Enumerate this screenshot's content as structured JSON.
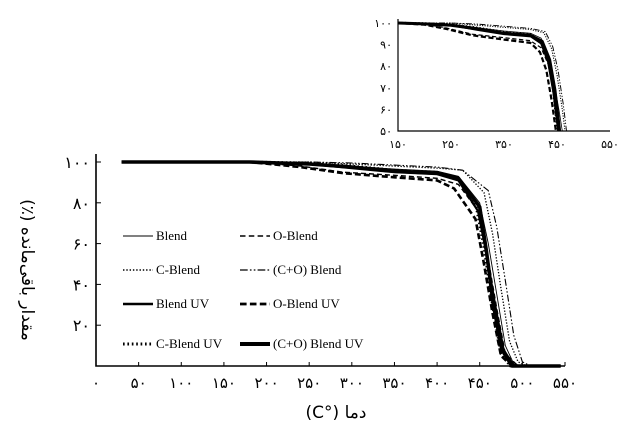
{
  "chart_data": [
    {
      "type": "line",
      "title": "",
      "xlabel": "دما (°C)",
      "ylabel": "مقدار باقی‌مانده (٪)",
      "xlim": [
        0,
        550
      ],
      "ylim": [
        0,
        100
      ],
      "x_ticks": [
        0,
        50,
        100,
        150,
        200,
        250,
        300,
        350,
        400,
        450,
        500,
        550
      ],
      "x_tick_labels": [
        "۰",
        "۵۰",
        "۱۰۰",
        "۱۵۰",
        "۲۰۰",
        "۲۵۰",
        "۳۰۰",
        "۳۵۰",
        "۴۰۰",
        "۴۵۰",
        "۵۰۰",
        "۵۵۰"
      ],
      "y_ticks": [
        20,
        40,
        60,
        80,
        100
      ],
      "y_tick_labels": [
        "۲۰",
        "۴۰",
        "۶۰",
        "۸۰",
        "۱۰۰"
      ],
      "grid": false,
      "legend_position": "bottom-left",
      "series": [
        {
          "name": "Blend",
          "style": "thin-solid",
          "x": [
            30,
            180,
            250,
            300,
            350,
            400,
            425,
            450,
            460,
            470,
            480,
            490,
            500
          ],
          "y": [
            100,
            100,
            99.5,
            98,
            96.5,
            95.5,
            93,
            80,
            60,
            35,
            10,
            1,
            0
          ]
        },
        {
          "name": "O-Blend",
          "style": "dashed",
          "x": [
            30,
            180,
            240,
            290,
            350,
            400,
            425,
            450,
            460,
            470,
            480,
            495
          ],
          "y": [
            100,
            100,
            98,
            95,
            93.5,
            92,
            89,
            75,
            52,
            28,
            6,
            0
          ]
        },
        {
          "name": "C-Blend",
          "style": "dotted",
          "x": [
            30,
            180,
            250,
            300,
            350,
            400,
            430,
            455,
            465,
            475,
            485,
            495,
            505
          ],
          "y": [
            100,
            100,
            100,
            99,
            98,
            97,
            96,
            85,
            65,
            38,
            12,
            2,
            0
          ]
        },
        {
          "name": "(C+O) Blend",
          "style": "dash-dot-dot",
          "x": [
            30,
            180,
            250,
            300,
            350,
            400,
            430,
            460,
            470,
            480,
            490,
            500,
            510
          ],
          "y": [
            100,
            100,
            100,
            99.5,
            98.5,
            97.5,
            96,
            86,
            68,
            42,
            15,
            2,
            0
          ]
        },
        {
          "name": "Blend UV",
          "style": "thick-solid",
          "x": [
            30,
            180,
            250,
            300,
            350,
            400,
            425,
            448,
            458,
            468,
            478,
            490
          ],
          "y": [
            100,
            100,
            99,
            97,
            95,
            94,
            91,
            76,
            55,
            30,
            8,
            0
          ]
        },
        {
          "name": "O-Blend UV",
          "style": "thick-dashed",
          "x": [
            30,
            180,
            240,
            290,
            350,
            400,
            420,
            445,
            455,
            465,
            475,
            488
          ],
          "y": [
            100,
            100,
            97.5,
            94.5,
            92.5,
            91,
            87,
            72,
            50,
            26,
            5,
            0
          ]
        },
        {
          "name": "C-Blend UV",
          "style": "thick-dotted",
          "x": [
            30,
            180,
            250,
            300,
            350,
            400,
            425,
            445,
            455,
            465,
            475,
            486
          ],
          "y": [
            100,
            100,
            99.5,
            98,
            96,
            95,
            92,
            80,
            58,
            30,
            6,
            0
          ]
        },
        {
          "name": "(C+O) Blend UV",
          "style": "heavy-solid",
          "x": [
            30,
            180,
            250,
            300,
            350,
            400,
            425,
            450,
            458,
            466,
            476,
            488
          ],
          "y": [
            100,
            100,
            99,
            97.5,
            95.5,
            94.5,
            92,
            78,
            56,
            30,
            8,
            0
          ]
        }
      ]
    },
    {
      "type": "line",
      "title": "",
      "xlim": [
        150,
        550
      ],
      "ylim": [
        50,
        100
      ],
      "x_ticks": [
        150,
        250,
        350,
        450,
        550
      ],
      "x_tick_labels": [
        "۱۵۰",
        "۲۵۰",
        "۳۵۰",
        "۴۵۰",
        "۵۵۰"
      ],
      "y_ticks": [
        50,
        60,
        70,
        80,
        90,
        100
      ],
      "y_tick_labels": [
        "۵۰",
        "۶۰",
        "۷۰",
        "۸۰",
        "۹۰",
        "۱۰۰"
      ],
      "grid": false,
      "legend_position": "none",
      "series": [
        {
          "style": "thin-solid",
          "x": [
            150,
            200,
            250,
            300,
            350,
            400,
            420,
            435,
            445,
            455,
            460
          ],
          "y": [
            100,
            99.8,
            99.3,
            97.8,
            96.3,
            95.3,
            93,
            85,
            72,
            58,
            50
          ]
        },
        {
          "style": "dashed",
          "x": [
            150,
            200,
            240,
            290,
            350,
            400,
            420,
            435,
            445,
            453
          ],
          "y": [
            100,
            99.5,
            97.8,
            94.8,
            93.2,
            91.8,
            88.5,
            80,
            66,
            50
          ]
        },
        {
          "style": "dotted",
          "x": [
            150,
            200,
            250,
            300,
            350,
            400,
            425,
            440,
            450,
            460,
            465
          ],
          "y": [
            100,
            100,
            100,
            99,
            98,
            97,
            95.5,
            88,
            76,
            60,
            50
          ]
        },
        {
          "style": "dash-dot-dot",
          "x": [
            150,
            200,
            250,
            300,
            350,
            400,
            428,
            442,
            452,
            462,
            468
          ],
          "y": [
            100,
            100,
            100,
            99.5,
            98.5,
            97.5,
            96,
            89,
            78,
            62,
            50
          ]
        },
        {
          "style": "thick-solid",
          "x": [
            150,
            200,
            250,
            300,
            350,
            400,
            420,
            433,
            443,
            452
          ],
          "y": [
            100,
            99.6,
            99,
            96.8,
            94.8,
            93.8,
            90.5,
            82,
            68,
            50
          ]
        },
        {
          "style": "thick-dashed",
          "x": [
            150,
            200,
            240,
            290,
            350,
            400,
            418,
            430,
            440,
            448
          ],
          "y": [
            100,
            99.2,
            97.3,
            94.3,
            92.3,
            90.8,
            86.5,
            78,
            64,
            50
          ]
        },
        {
          "style": "thick-dotted",
          "x": [
            150,
            200,
            250,
            300,
            350,
            400,
            420,
            433,
            443,
            451
          ],
          "y": [
            100,
            99.8,
            99.3,
            97.8,
            95.8,
            94.8,
            91.5,
            83,
            69,
            50
          ]
        },
        {
          "style": "heavy-solid",
          "x": [
            150,
            200,
            250,
            300,
            350,
            400,
            422,
            436,
            446,
            455
          ],
          "y": [
            100,
            99.6,
            99,
            97.3,
            95.3,
            94.3,
            91.5,
            83,
            69,
            50
          ]
        }
      ]
    }
  ]
}
